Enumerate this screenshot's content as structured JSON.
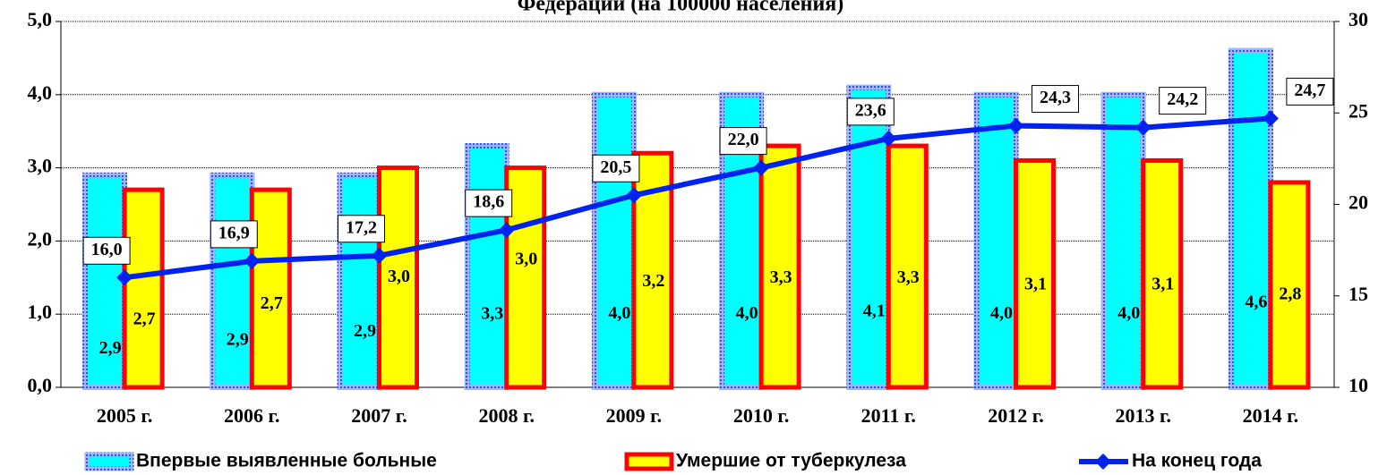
{
  "chart_data": {
    "type": "bar_line",
    "title": "Федерации (на 100000 населения)",
    "categories": [
      "2005 г.",
      "2006 г.",
      "2007 г.",
      "2008 г.",
      "2009 г.",
      "2010 г.",
      "2011 г.",
      "2012 г.",
      "2013 г.",
      "2014 г."
    ],
    "series": [
      {
        "name": "Впервые выявленные больные",
        "color": "#00ffff",
        "values": [
          2.9,
          2.9,
          2.9,
          3.3,
          4.0,
          4.0,
          4.1,
          4.0,
          4.0,
          4.6
        ],
        "value_labels": [
          "2,9",
          "2,9",
          "2,9",
          "3,3",
          "4,0",
          "4,0",
          "4,1",
          "4,0",
          "4,0",
          "4,6"
        ]
      },
      {
        "name": "Умершие от туберкулеза",
        "color": "#ffff00",
        "values": [
          2.7,
          2.7,
          3.0,
          3.0,
          3.2,
          3.3,
          3.3,
          3.1,
          3.1,
          2.8
        ],
        "value_labels": [
          "2,7",
          "2,7",
          "3,0",
          "3,0",
          "3,2",
          "3,3",
          "3,3",
          "3,1",
          "3,1",
          "2,8"
        ]
      },
      {
        "name": "На конец года",
        "color": "#0022ee",
        "axis": "y2",
        "values": [
          16.0,
          16.9,
          17.2,
          18.6,
          20.5,
          22.0,
          23.6,
          24.3,
          24.2,
          24.7
        ],
        "value_labels": [
          "16,0",
          "16,9",
          "17,2",
          "18,6",
          "20,5",
          "22,0",
          "23,6",
          "24,3",
          "24,2",
          "24,7"
        ]
      }
    ],
    "ylim": [
      0,
      5
    ],
    "yticks": [
      {
        "value": 0,
        "label": "0,0"
      },
      {
        "value": 1,
        "label": "1,0"
      },
      {
        "value": 2,
        "label": "2,0"
      },
      {
        "value": 3,
        "label": "3,0"
      },
      {
        "value": 4,
        "label": "4,0"
      },
      {
        "value": 5,
        "label": "5,0"
      }
    ],
    "y2lim": [
      10,
      30
    ],
    "y2ticks": [
      10,
      15,
      20,
      25,
      30
    ],
    "grid": true
  }
}
